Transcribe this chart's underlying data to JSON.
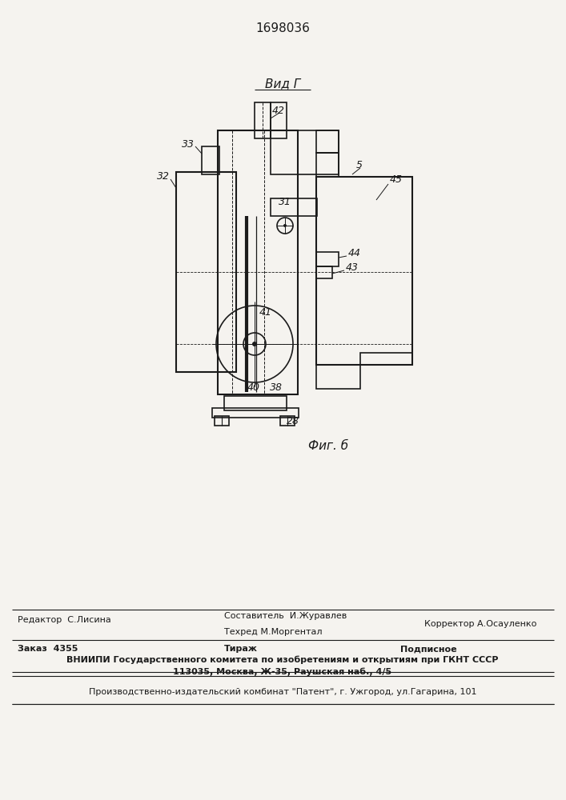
{
  "patent_number": "1698036",
  "bg_color": "#ffffff",
  "paper_color": "#f5f3ef",
  "line_color": "#1a1a1a",
  "view_label": "Вид Г",
  "fig_label": "Фиг. б",
  "footer": {
    "line1_left": "Редактор  С.Лисина",
    "line1_center_top": "Составитель  И.Журавлев",
    "line1_center_bot": "Техред М.Моргентал",
    "line1_right": "Корректор А.Осауленко",
    "line2_left": "Заказ  4355",
    "line2_center": "Тираж",
    "line2_right": "Подписное",
    "line3": "ВНИИПИ Государственного комитета по изобретениям и открытиям при ГКНТ СССР",
    "line4": "113035, Москва, Ж-35, Раушская наб., 4/5",
    "line5": "Производственно-издательский комбинат \"Патент\", г. Ужгород, ул.Гагарина, 101"
  }
}
